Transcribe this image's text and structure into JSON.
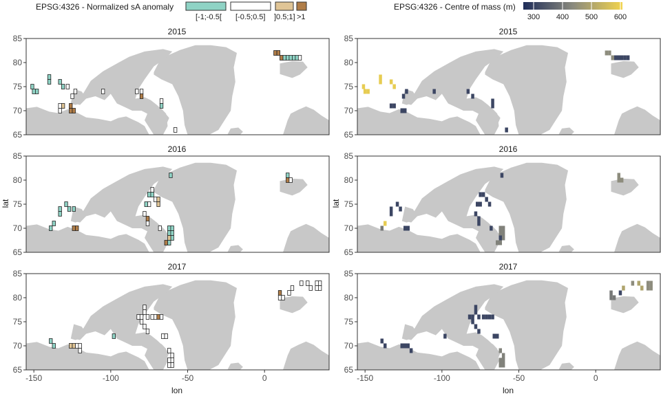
{
  "colors": {
    "land": "#c8c8c8",
    "anom_low": "#8fd3c5",
    "anom_mid": "#ffffff",
    "anom_mhigh": "#e0c596",
    "anom_high": "#b07d48",
    "com_low": "#1f2d59",
    "com_mid": "#8a8a7e",
    "com_high": "#f2d44d",
    "frame": "#333333"
  },
  "legend_left": {
    "title": "EPSG:4326 - Normalized sA anomaly",
    "keys": [
      "[-1;-0.5[",
      "[-0.5;0.5]",
      "]0.5;1]",
      ">1"
    ]
  },
  "legend_right": {
    "title": "EPSG:4326 - Centre of mass (m)",
    "ticks": [
      "300",
      "400",
      "500",
      "600"
    ]
  },
  "axes": {
    "xlabel": "lon",
    "ylabel": "lat"
  },
  "chart_data": [
    {
      "type": "heatmap",
      "title": "EPSG:4326 - Normalized sA anomaly",
      "xlabel": "lon",
      "ylabel": "lat",
      "xlim": [
        -155,
        42
      ],
      "ylim": [
        65,
        85
      ],
      "xticks": [
        -150,
        -100,
        -50,
        0
      ],
      "yticks": [
        65,
        70,
        75,
        80,
        85
      ],
      "legend": [
        "[-1;-0.5[",
        "[-0.5;0.5]",
        "]0.5;1]",
        ">1"
      ],
      "legend_position": "top",
      "facets": [
        {
          "year": "2015",
          "cells": [
            [
              -151,
              75,
              "[-1;-0.5["
            ],
            [
              -150,
              74,
              "[-1;-0.5["
            ],
            [
              -148,
              74,
              "[-1;-0.5["
            ],
            [
              -140,
              77,
              "[-1;-0.5["
            ],
            [
              -140,
              76,
              "[-1;-0.5["
            ],
            [
              -133,
              76,
              "[-1;-0.5["
            ],
            [
              -131,
              75,
              "[-1;-0.5["
            ],
            [
              -128,
              75,
              "[-0.5;0.5]"
            ],
            [
              -125,
              73,
              "[-0.5;0.5]"
            ],
            [
              -123,
              74,
              "[-0.5;0.5]"
            ],
            [
              -133,
              71,
              "[-0.5;0.5]"
            ],
            [
              -131,
              71,
              "]0.5;1]"
            ],
            [
              -133,
              70,
              "[-0.5;0.5]"
            ],
            [
              -126,
              71,
              ">1"
            ],
            [
              -126,
              70,
              ">1"
            ],
            [
              -124,
              70,
              ">1"
            ],
            [
              -105,
              74,
              "[-0.5;0.5]"
            ],
            [
              -83,
              74,
              "[-0.5;0.5]"
            ],
            [
              -80,
              74,
              "[-0.5;0.5]"
            ],
            [
              -80,
              73,
              ">1"
            ],
            [
              -67,
              72,
              "[-0.5;0.5]"
            ],
            [
              -67,
              71,
              "[-1;-0.5["
            ],
            [
              -58,
              66,
              "[-0.5;0.5]"
            ],
            [
              7,
              82,
              ">1"
            ],
            [
              9,
              82,
              ">1"
            ],
            [
              11,
              81,
              ">1"
            ],
            [
              13,
              81,
              "[-1;-0.5["
            ],
            [
              15,
              81,
              "[-1;-0.5["
            ],
            [
              17,
              81,
              "[-1;-0.5["
            ],
            [
              19,
              81,
              "[-1;-0.5["
            ],
            [
              21,
              81,
              "[-1;-0.5["
            ],
            [
              23,
              81,
              "[-0.5;0.5]"
            ]
          ]
        },
        {
          "year": "2016",
          "cells": [
            [
              -61,
              81,
              "[-1;-0.5["
            ],
            [
              -75,
              77,
              "[-1;-0.5["
            ],
            [
              -73,
              77,
              "[-1;-0.5["
            ],
            [
              -73,
              78,
              "[-0.5;0.5]"
            ],
            [
              -71,
              76,
              "[-0.5;0.5]"
            ],
            [
              -69,
              76,
              "]0.5;1]"
            ],
            [
              -69,
              75,
              "]0.5;1]"
            ],
            [
              -75,
              75,
              "[-0.5;0.5]"
            ],
            [
              -77,
              75,
              "[-1;-0.5["
            ],
            [
              -129,
              75,
              "[-1;-0.5["
            ],
            [
              -127,
              74,
              "[-1;-0.5["
            ],
            [
              -124,
              74,
              "[-1;-0.5["
            ],
            [
              -133,
              74,
              "[-1;-0.5["
            ],
            [
              -133,
              73,
              "[-1;-0.5["
            ],
            [
              -137,
              71,
              "[-1;-0.5["
            ],
            [
              -139,
              70,
              "[-1;-0.5["
            ],
            [
              -124,
              70,
              ">1"
            ],
            [
              -122,
              70,
              ">1"
            ],
            [
              -78,
              73,
              "[-0.5;0.5]"
            ],
            [
              -76,
              72,
              ">1"
            ],
            [
              -76,
              71,
              "[-0.5;0.5]"
            ],
            [
              -68,
              70,
              "[-0.5;0.5]"
            ],
            [
              -62,
              70,
              "[-1;-0.5["
            ],
            [
              -60,
              70,
              "[-1;-0.5["
            ],
            [
              -62,
              69,
              "[-1;-0.5["
            ],
            [
              -60,
              69,
              "[-1;-0.5["
            ],
            [
              -60,
              68,
              "[-1;-0.5["
            ],
            [
              -62,
              68,
              "]0.5;1]"
            ],
            [
              -64,
              67,
              ">1"
            ],
            [
              -62,
              67,
              "[-1;-0.5["
            ],
            [
              15,
              81,
              "[-1;-0.5["
            ],
            [
              15,
              80,
              ">1"
            ],
            [
              17,
              80,
              "[-0.5;0.5]"
            ]
          ]
        },
        {
          "year": "2017",
          "cells": [
            [
              -139,
              71,
              "[-1;-0.5["
            ],
            [
              -137,
              70,
              "[-1;-0.5["
            ],
            [
              -126,
              70,
              "]0.5;1]"
            ],
            [
              -124,
              70,
              "]0.5;1]"
            ],
            [
              -122,
              70,
              "[-0.5;0.5]"
            ],
            [
              -120,
              69,
              "[-0.5;0.5]"
            ],
            [
              -120,
              70,
              "[-0.5;0.5]"
            ],
            [
              -98,
              72,
              "[-1;-0.5["
            ],
            [
              -82,
              76,
              "[-0.5;0.5]"
            ],
            [
              -80,
              76,
              "[-0.5;0.5]"
            ],
            [
              -78,
              77,
              "[-0.5;0.5]"
            ],
            [
              -76,
              76,
              "[-0.5;0.5]"
            ],
            [
              -73,
              76,
              "[-0.5;0.5]"
            ],
            [
              -71,
              76,
              "[-0.5;0.5]"
            ],
            [
              -69,
              76,
              ">1"
            ],
            [
              -67,
              76,
              "[-0.5;0.5]"
            ],
            [
              -78,
              78,
              "[-0.5;0.5]"
            ],
            [
              -80,
              75,
              "[-0.5;0.5]"
            ],
            [
              -78,
              74,
              "[-0.5;0.5]"
            ],
            [
              -76,
              73,
              "[-0.5;0.5]"
            ],
            [
              -66,
              72,
              "[-0.5;0.5]"
            ],
            [
              -64,
              72,
              "[-0.5;0.5]"
            ],
            [
              -62,
              69,
              "[-0.5;0.5]"
            ],
            [
              -60,
              68,
              "[-0.5;0.5]"
            ],
            [
              -60,
              67,
              "[-0.5;0.5]"
            ],
            [
              -62,
              67,
              "[-0.5;0.5]"
            ],
            [
              -60,
              66,
              "[-0.5;0.5]"
            ],
            [
              -62,
              66,
              "[-0.5;0.5]"
            ],
            [
              10,
              81,
              ">1"
            ],
            [
              10,
              80,
              "[-0.5;0.5]"
            ],
            [
              12,
              80,
              "[-0.5;0.5]"
            ],
            [
              16,
              81,
              "[-0.5;0.5]"
            ],
            [
              18,
              82,
              "[-0.5;0.5]"
            ],
            [
              24,
              83,
              "[-0.5;0.5]"
            ],
            [
              28,
              83,
              "[-0.5;0.5]"
            ],
            [
              30,
              82,
              "[-0.5;0.5]"
            ],
            [
              34,
              83,
              "[-0.5;0.5]"
            ],
            [
              34,
              82,
              "[-0.5;0.5]"
            ],
            [
              36,
              83,
              "[-0.5;0.5]"
            ],
            [
              36,
              82,
              "[-0.5;0.5]"
            ]
          ]
        }
      ]
    },
    {
      "type": "heatmap",
      "title": "EPSG:4326 - Centre of mass (m)",
      "xlabel": "lon",
      "ylabel": "lat",
      "xlim": [
        -155,
        42
      ],
      "ylim": [
        65,
        85
      ],
      "xticks": [
        -150,
        -100,
        -50,
        0
      ],
      "yticks": [
        65,
        70,
        75,
        80,
        85
      ],
      "color_scale": {
        "min": 250,
        "max": 620,
        "ticks": [
          300,
          400,
          500,
          600
        ]
      },
      "legend_position": "top",
      "facets": [
        {
          "year": "2015",
          "cells": [
            [
              -151,
              75,
              600
            ],
            [
              -150,
              74,
              600
            ],
            [
              -148,
              74,
              600
            ],
            [
              -140,
              77,
              600
            ],
            [
              -140,
              76,
              600
            ],
            [
              -133,
              76,
              600
            ],
            [
              -131,
              75,
              600
            ],
            [
              -125,
              73,
              300
            ],
            [
              -123,
              74,
              300
            ],
            [
              -133,
              71,
              300
            ],
            [
              -131,
              71,
              300
            ],
            [
              -126,
              70,
              300
            ],
            [
              -124,
              70,
              300
            ],
            [
              -105,
              74,
              300
            ],
            [
              -83,
              74,
              300
            ],
            [
              -80,
              73,
              300
            ],
            [
              -67,
              72,
              300
            ],
            [
              -67,
              71,
              300
            ],
            [
              -58,
              66,
              300
            ],
            [
              7,
              82,
              440
            ],
            [
              9,
              82,
              440
            ],
            [
              11,
              81,
              440
            ],
            [
              13,
              81,
              300
            ],
            [
              15,
              81,
              300
            ],
            [
              17,
              81,
              300
            ],
            [
              19,
              81,
              300
            ],
            [
              21,
              81,
              300
            ]
          ]
        },
        {
          "year": "2016",
          "cells": [
            [
              -61,
              81,
              300
            ],
            [
              -75,
              77,
              300
            ],
            [
              -73,
              77,
              300
            ],
            [
              -71,
              76,
              300
            ],
            [
              -69,
              75,
              300
            ],
            [
              -77,
              75,
              300
            ],
            [
              -75,
              75,
              300
            ],
            [
              -129,
              75,
              300
            ],
            [
              -127,
              74,
              300
            ],
            [
              -133,
              74,
              300
            ],
            [
              -133,
              73,
              300
            ],
            [
              -137,
              71,
              600
            ],
            [
              -139,
              70,
              400
            ],
            [
              -124,
              70,
              300
            ],
            [
              -122,
              70,
              300
            ],
            [
              -78,
              73,
              300
            ],
            [
              -76,
              72,
              300
            ],
            [
              -76,
              71,
              300
            ],
            [
              -68,
              70,
              300
            ],
            [
              -62,
              70,
              420
            ],
            [
              -60,
              70,
              420
            ],
            [
              -62,
              69,
              420
            ],
            [
              -60,
              69,
              420
            ],
            [
              -60,
              68,
              420
            ],
            [
              -62,
              68,
              300
            ],
            [
              -64,
              67,
              420
            ],
            [
              -62,
              67,
              420
            ],
            [
              15,
              81,
              440
            ],
            [
              15,
              80,
              440
            ],
            [
              17,
              80,
              440
            ]
          ]
        },
        {
          "year": "2017",
          "cells": [
            [
              -139,
              71,
              300
            ],
            [
              -137,
              70,
              300
            ],
            [
              -126,
              70,
              300
            ],
            [
              -124,
              70,
              300
            ],
            [
              -122,
              70,
              300
            ],
            [
              -120,
              69,
              300
            ],
            [
              -98,
              72,
              300
            ],
            [
              -82,
              76,
              300
            ],
            [
              -80,
              76,
              300
            ],
            [
              -78,
              77,
              300
            ],
            [
              -78,
              78,
              300
            ],
            [
              -76,
              76,
              300
            ],
            [
              -73,
              76,
              300
            ],
            [
              -71,
              76,
              300
            ],
            [
              -69,
              76,
              300
            ],
            [
              -67,
              76,
              300
            ],
            [
              -80,
              75,
              300
            ],
            [
              -78,
              74,
              300
            ],
            [
              -76,
              73,
              300
            ],
            [
              -66,
              72,
              300
            ],
            [
              -64,
              72,
              300
            ],
            [
              -62,
              69,
              420
            ],
            [
              -60,
              68,
              420
            ],
            [
              -60,
              67,
              420
            ],
            [
              -62,
              67,
              420
            ],
            [
              -60,
              66,
              420
            ],
            [
              -62,
              66,
              420
            ],
            [
              10,
              81,
              400
            ],
            [
              10,
              80,
              400
            ],
            [
              12,
              80,
              400
            ],
            [
              16,
              81,
              300
            ],
            [
              18,
              82,
              500
            ],
            [
              24,
              83,
              440
            ],
            [
              28,
              83,
              500
            ],
            [
              30,
              82,
              500
            ],
            [
              34,
              83,
              440
            ],
            [
              34,
              82,
              440
            ],
            [
              36,
              83,
              440
            ],
            [
              36,
              82,
              440
            ]
          ]
        }
      ]
    }
  ]
}
